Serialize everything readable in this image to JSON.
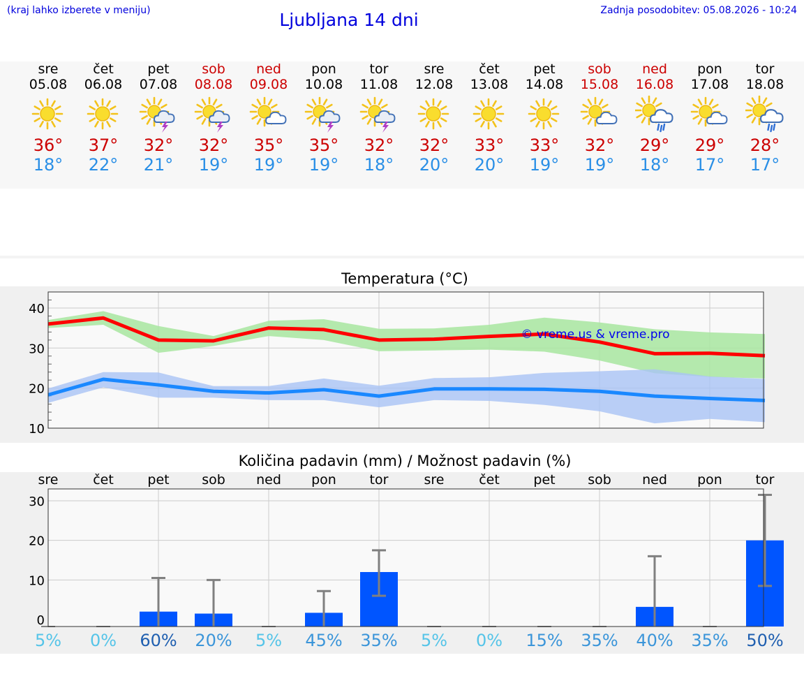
{
  "header": {
    "left_note": "(kraj lahko izberete v meniju)",
    "title": "Ljubljana 14 dni",
    "updated": "Zadnja posodobitev: 05.08.2026 - 10:24"
  },
  "colors": {
    "max_temp": "#cc0000",
    "min_temp": "#2a8fe6",
    "max_line": "#ff0000",
    "max_band": "#a8e6a0",
    "min_line": "#1a88ff",
    "min_band": "#a9c3f5",
    "precip_bar": "#0055ff"
  },
  "forecast": [
    {
      "day": "sre",
      "date": "05.08",
      "weekend": false,
      "icon": "sun-icon",
      "max": "36°",
      "min": "18°"
    },
    {
      "day": "čet",
      "date": "06.08",
      "weekend": false,
      "icon": "sun-icon",
      "max": "37°",
      "min": "22°"
    },
    {
      "day": "pet",
      "date": "07.08",
      "weekend": false,
      "icon": "sun-thunderstorm-icon",
      "max": "32°",
      "min": "21°"
    },
    {
      "day": "sob",
      "date": "08.08",
      "weekend": true,
      "icon": "sun-thunderstorm-icon",
      "max": "32°",
      "min": "19°"
    },
    {
      "day": "ned",
      "date": "09.08",
      "weekend": true,
      "icon": "sun-cloud-icon",
      "max": "35°",
      "min": "19°"
    },
    {
      "day": "pon",
      "date": "10.08",
      "weekend": false,
      "icon": "sun-thunderstorm-icon",
      "max": "35°",
      "min": "19°"
    },
    {
      "day": "tor",
      "date": "11.08",
      "weekend": false,
      "icon": "sun-thunderstorm-icon",
      "max": "32°",
      "min": "18°"
    },
    {
      "day": "sre",
      "date": "12.08",
      "weekend": false,
      "icon": "sun-icon",
      "max": "32°",
      "min": "20°"
    },
    {
      "day": "čet",
      "date": "13.08",
      "weekend": false,
      "icon": "sun-icon",
      "max": "33°",
      "min": "20°"
    },
    {
      "day": "pet",
      "date": "14.08",
      "weekend": false,
      "icon": "sun-icon",
      "max": "33°",
      "min": "19°"
    },
    {
      "day": "sob",
      "date": "15.08",
      "weekend": true,
      "icon": "sun-cloud-icon",
      "max": "32°",
      "min": "19°"
    },
    {
      "day": "ned",
      "date": "16.08",
      "weekend": true,
      "icon": "sun-rain-cloud-icon",
      "max": "29°",
      "min": "18°"
    },
    {
      "day": "pon",
      "date": "17.08",
      "weekend": false,
      "icon": "sun-cloud-icon",
      "max": "29°",
      "min": "17°"
    },
    {
      "day": "tor",
      "date": "18.08",
      "weekend": false,
      "icon": "sun-rain-cloud-icon",
      "max": "28°",
      "min": "17°"
    }
  ],
  "chart_data": [
    {
      "type": "line",
      "title": "Temperatura (°C)",
      "watermark": "© vreme.us & vreme.pro",
      "ylim": [
        10,
        44
      ],
      "yticks": [
        10,
        20,
        30,
        40
      ],
      "grid": true,
      "categories": [
        "05.08",
        "06.08",
        "07.08",
        "08.08",
        "09.08",
        "10.08",
        "11.08",
        "12.08",
        "13.08",
        "14.08",
        "15.08",
        "16.08",
        "17.08",
        "18.08"
      ],
      "series": [
        {
          "values": [
            36,
            37.5,
            32,
            31.8,
            35,
            34.6,
            32,
            32.2,
            32.9,
            33.5,
            31.5,
            28.6,
            28.7,
            28.1
          ],
          "range_low": [
            35,
            35.8,
            28.8,
            30.5,
            33,
            32,
            29.2,
            29.4,
            29.6,
            29.1,
            26.9,
            23.7,
            22.8,
            22.4
          ],
          "range_high": [
            37,
            39.2,
            35.5,
            33,
            36.8,
            37.2,
            34.8,
            34.9,
            35.8,
            37.6,
            36.4,
            34.7,
            33.9,
            33.5
          ]
        },
        {
          "values": [
            18.3,
            22.2,
            20.8,
            19.2,
            18.8,
            19.6,
            18,
            19.8,
            19.8,
            19.7,
            19.2,
            18,
            17.4,
            16.9
          ],
          "range_low": [
            16.3,
            20.2,
            17.6,
            17.6,
            17,
            17,
            15.2,
            17,
            16.8,
            15.8,
            14.2,
            11.2,
            12.3,
            11.5
          ],
          "range_high": [
            19.9,
            24,
            23.9,
            20.5,
            20.5,
            22.4,
            20.6,
            22.5,
            22.7,
            23.8,
            24.2,
            24.7,
            22.9,
            22.3
          ]
        }
      ]
    },
    {
      "type": "bar",
      "title": "Količina padavin (mm) / Možnost padavin (%)",
      "ylim": [
        0,
        33
      ],
      "yticks": [
        0,
        10,
        20,
        30
      ],
      "grid": true,
      "categories": [
        "sre",
        "čet",
        "pet",
        "sob",
        "ned",
        "pon",
        "tor",
        "sre",
        "čet",
        "pet",
        "sob",
        "ned",
        "pon",
        "tor"
      ],
      "values": [
        0,
        0,
        2,
        1.5,
        0,
        1.7,
        12,
        0,
        0,
        0,
        0,
        3.2,
        0,
        20
      ],
      "error_low": [
        0,
        0,
        0,
        0,
        0,
        0,
        6,
        0,
        0,
        0,
        0,
        0,
        0,
        8.5
      ],
      "error_high": [
        0,
        0,
        10.5,
        10,
        0,
        7.2,
        17.5,
        0,
        0,
        0,
        0,
        16,
        0,
        31.5
      ],
      "probability": [
        "5%",
        "0%",
        "60%",
        "20%",
        "5%",
        "45%",
        "35%",
        "5%",
        "0%",
        "15%",
        "35%",
        "40%",
        "35%",
        "50%"
      ]
    }
  ]
}
